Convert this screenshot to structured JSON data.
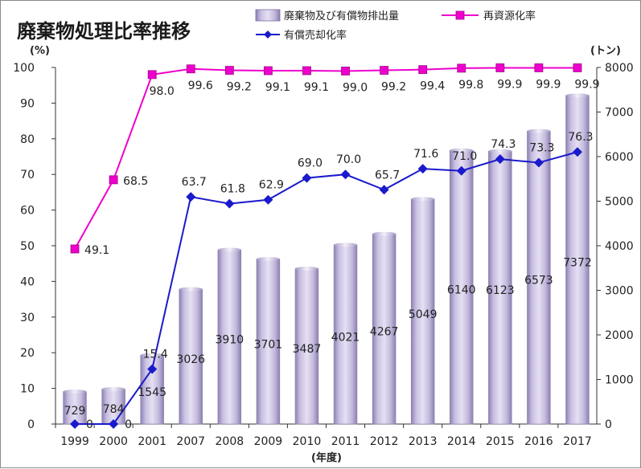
{
  "chart_data": {
    "type": "bar",
    "title": "廃棄物処理比率推移",
    "categories": [
      "1999",
      "2000",
      "2001",
      "2007",
      "2008",
      "2009",
      "2010",
      "2011",
      "2012",
      "2013",
      "2014",
      "2015",
      "2016",
      "2017"
    ],
    "x_unit": "(年度)",
    "y_left": {
      "unit": "(%)",
      "min": 0,
      "max": 100,
      "step": 10
    },
    "y_right": {
      "unit": "(トン)",
      "min": 0,
      "max": 8000,
      "step": 1000
    },
    "grid": false,
    "legend_position": "top-right",
    "series": [
      {
        "name": "廃棄物及び有償物排出量",
        "type": "bar",
        "axis": "right",
        "color": "#b4a9d0",
        "values": [
          729,
          784,
          1545,
          3026,
          3910,
          3701,
          3487,
          4021,
          4267,
          5049,
          6140,
          6123,
          6573,
          7372
        ]
      },
      {
        "name": "再資源化率",
        "type": "line",
        "axis": "left",
        "color": "#ee00cc",
        "marker": "square",
        "values": [
          49.1,
          68.5,
          98.0,
          99.6,
          99.2,
          99.1,
          99.1,
          99.0,
          99.2,
          99.4,
          99.8,
          99.9,
          99.9,
          99.9
        ],
        "labels": [
          "49.1",
          "68.5",
          "98.0",
          "99.6",
          "99.2",
          "99.1",
          "99.1",
          "99.0",
          "99.2",
          "99.4",
          "99.8",
          "99.9",
          "99.9",
          "99.9"
        ]
      },
      {
        "name": "有償売却化率",
        "type": "line",
        "axis": "left",
        "color": "#1a1acc",
        "marker": "diamond",
        "values": [
          0,
          0,
          15.4,
          63.7,
          61.8,
          62.9,
          69.0,
          70.0,
          65.7,
          71.6,
          71.0,
          74.3,
          73.3,
          76.3
        ],
        "labels": [
          "0",
          "0",
          "15.4",
          "63.7",
          "61.8",
          "62.9",
          "69.0",
          "70.0",
          "65.7",
          "71.6",
          "71.0",
          "74.3",
          "73.3",
          "76.3"
        ]
      }
    ]
  }
}
